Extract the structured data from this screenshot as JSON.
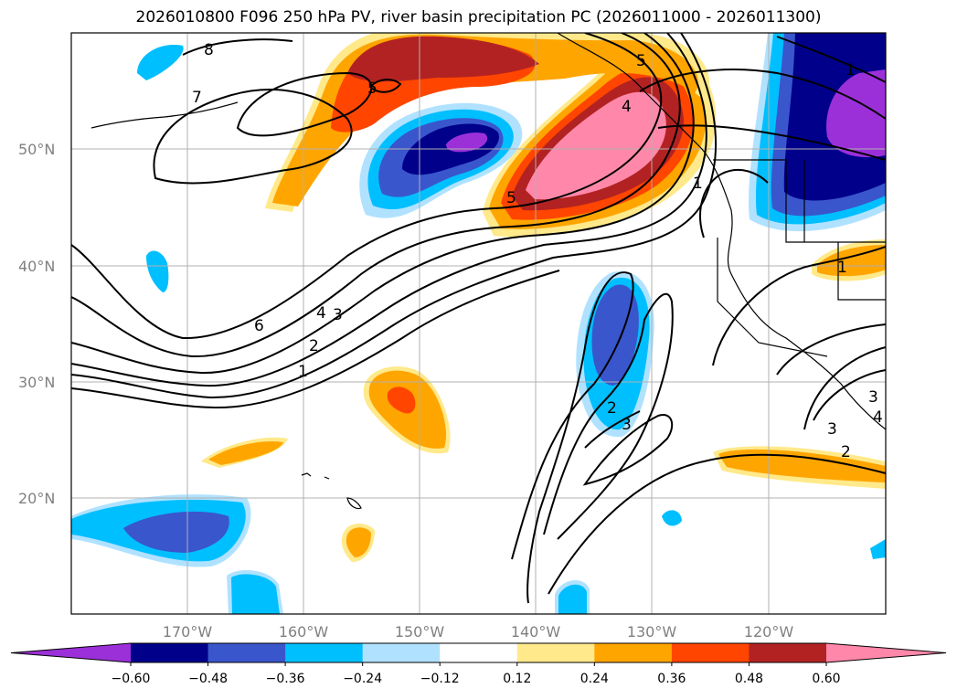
{
  "title": "2026010800 F096 250 hPa PV, river basin precipitation PC (2026011000 - 2026011300)",
  "map": {
    "projection": "Plate Carree",
    "lon_range": [
      -180,
      -110
    ],
    "lat_range": [
      10,
      60
    ],
    "latitude_labels": [
      "50°N",
      "40°N",
      "30°N",
      "20°N"
    ],
    "longitude_labels": [
      "170°W",
      "160°W",
      "150°W",
      "140°W",
      "130°W",
      "120°W"
    ],
    "gridlines": true
  },
  "colorbar": {
    "orientation": "horizontal",
    "extend": "both",
    "tick_labels": [
      "−0.60",
      "−0.48",
      "−0.36",
      "−0.24",
      "−0.12",
      "0.12",
      "0.24",
      "0.36",
      "0.48",
      "0.60"
    ],
    "colors": [
      "#9b30d9",
      "#00008b",
      "#3a56cc",
      "#00bfff",
      "#b0e2ff",
      "#ffffff",
      "#ffe98a",
      "#ffa500",
      "#ff4500",
      "#b22222",
      "#ff88aa"
    ]
  },
  "pv_contour_labels": [
    "8",
    "7",
    "6",
    "5",
    "5",
    "5",
    "4",
    "4",
    "3",
    "3",
    "2",
    "2",
    "1",
    "1",
    "1",
    "1",
    "2",
    "3",
    "3",
    "4"
  ]
}
